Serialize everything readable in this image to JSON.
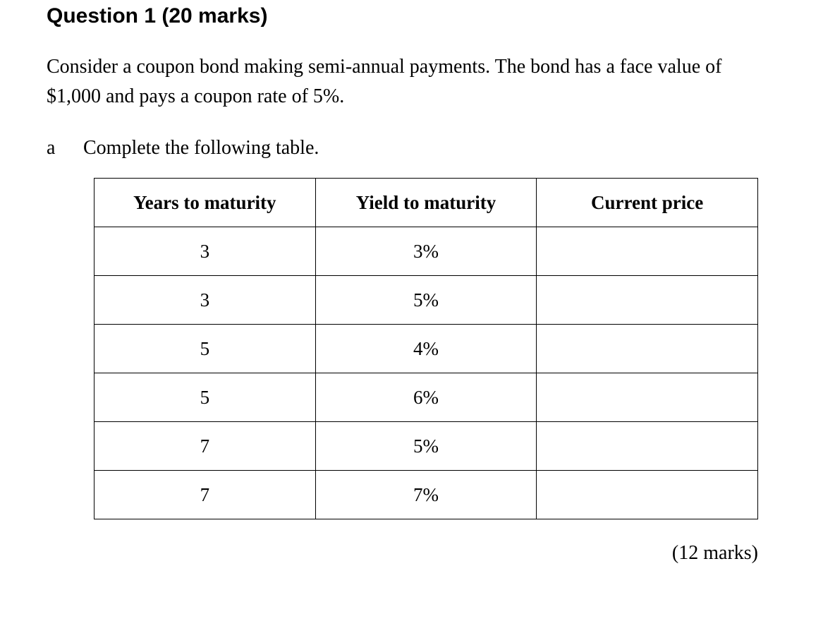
{
  "question": {
    "title": "Question 1 (20 marks)",
    "body": "Consider a coupon bond making semi-annual payments. The bond has a face value of $1,000 and pays a coupon rate of 5%.",
    "part_label": "a",
    "part_instruction": "Complete the following table.",
    "marks_note": "(12 marks)"
  },
  "table": {
    "headers": [
      "Years to maturity",
      "Yield to maturity",
      "Current price"
    ],
    "rows": [
      {
        "years": "3",
        "yield": "3%",
        "price": ""
      },
      {
        "years": "3",
        "yield": "5%",
        "price": ""
      },
      {
        "years": "5",
        "yield": "4%",
        "price": ""
      },
      {
        "years": "5",
        "yield": "6%",
        "price": ""
      },
      {
        "years": "7",
        "yield": "5%",
        "price": ""
      },
      {
        "years": "7",
        "yield": "7%",
        "price": ""
      }
    ]
  }
}
